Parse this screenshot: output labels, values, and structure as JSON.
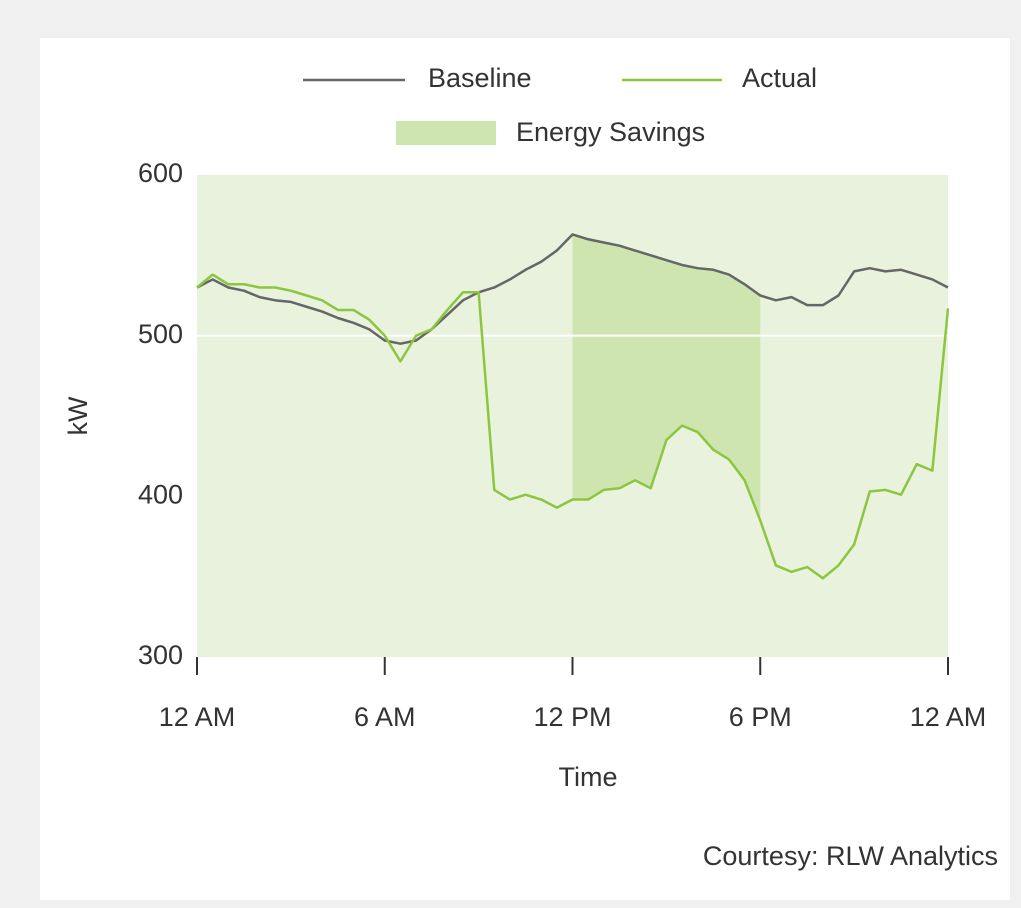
{
  "chart_data": {
    "type": "line",
    "x_label": "Time",
    "y_label": "kW",
    "annotation": "Courtesy: RLW Analytics",
    "x": [
      0,
      0.5,
      1,
      1.5,
      2,
      2.5,
      3,
      3.5,
      4,
      4.5,
      5,
      5.5,
      6,
      6.5,
      7,
      7.5,
      8,
      8.5,
      9,
      9.5,
      10,
      10.5,
      11,
      11.5,
      12,
      12.5,
      13,
      13.5,
      14,
      14.5,
      15,
      15.5,
      16,
      16.5,
      17,
      17.5,
      18,
      18.5,
      19,
      19.5,
      20,
      20.5,
      21,
      21.5,
      22,
      22.5,
      23,
      23.5,
      24
    ],
    "series": [
      {
        "name": "Baseline",
        "color": "#666666",
        "values": [
          530,
          535,
          530,
          528,
          524,
          522,
          521,
          518,
          515,
          511,
          508,
          504,
          497,
          495,
          497,
          504,
          513,
          522,
          527,
          530,
          535,
          541,
          546,
          553,
          563,
          560,
          558,
          556,
          553,
          550,
          547,
          544,
          542,
          541,
          538,
          532,
          525,
          522,
          524,
          519,
          519,
          525,
          540,
          542,
          540,
          541,
          538,
          535,
          530
        ]
      },
      {
        "name": "Actual",
        "color": "#8cc63f",
        "values": [
          530,
          538,
          532,
          532,
          530,
          530,
          528,
          525,
          522,
          516,
          516,
          510,
          500,
          484,
          500,
          504,
          516,
          527,
          527,
          404,
          398,
          401,
          398,
          393,
          398,
          398,
          404,
          405,
          410,
          405,
          435,
          444,
          440,
          429,
          423,
          410,
          385,
          357,
          353,
          356,
          349,
          357,
          370,
          403,
          404,
          401,
          420,
          416,
          517
        ]
      }
    ],
    "savings": {
      "name": "Energy Savings",
      "color": "#cfe5b0",
      "range": [
        12,
        18
      ]
    },
    "plot_background": "#e8f2dc",
    "xlim": [
      0,
      24
    ],
    "xticks": [
      {
        "value": 0,
        "label": "12 AM"
      },
      {
        "value": 6,
        "label": "6 AM"
      },
      {
        "value": 12,
        "label": "12 PM"
      },
      {
        "value": 18,
        "label": "6 PM"
      },
      {
        "value": 24,
        "label": "12 AM"
      }
    ],
    "ylim": [
      300,
      600
    ],
    "yticks": [
      300,
      400,
      500,
      600
    ],
    "gridlines": [
      500
    ]
  }
}
